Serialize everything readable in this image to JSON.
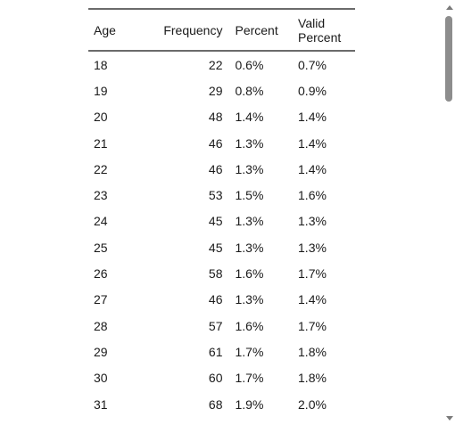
{
  "table": {
    "headers": {
      "age": "Age",
      "frequency": "Frequency",
      "percent": "Percent",
      "valid_percent_line1": "Valid",
      "valid_percent_line2": "Percent"
    },
    "rows": [
      {
        "age": "18",
        "frequency": "22",
        "percent": "0.6%",
        "valid_percent": "0.7%"
      },
      {
        "age": "19",
        "frequency": "29",
        "percent": "0.8%",
        "valid_percent": "0.9%"
      },
      {
        "age": "20",
        "frequency": "48",
        "percent": "1.4%",
        "valid_percent": "1.4%"
      },
      {
        "age": "21",
        "frequency": "46",
        "percent": "1.3%",
        "valid_percent": "1.4%"
      },
      {
        "age": "22",
        "frequency": "46",
        "percent": "1.3%",
        "valid_percent": "1.4%"
      },
      {
        "age": "23",
        "frequency": "53",
        "percent": "1.5%",
        "valid_percent": "1.6%"
      },
      {
        "age": "24",
        "frequency": "45",
        "percent": "1.3%",
        "valid_percent": "1.3%"
      },
      {
        "age": "25",
        "frequency": "45",
        "percent": "1.3%",
        "valid_percent": "1.3%"
      },
      {
        "age": "26",
        "frequency": "58",
        "percent": "1.6%",
        "valid_percent": "1.7%"
      },
      {
        "age": "27",
        "frequency": "46",
        "percent": "1.3%",
        "valid_percent": "1.4%"
      },
      {
        "age": "28",
        "frequency": "57",
        "percent": "1.6%",
        "valid_percent": "1.7%"
      },
      {
        "age": "29",
        "frequency": "61",
        "percent": "1.7%",
        "valid_percent": "1.8%"
      },
      {
        "age": "30",
        "frequency": "60",
        "percent": "1.7%",
        "valid_percent": "1.8%"
      },
      {
        "age": "31",
        "frequency": "68",
        "percent": "1.9%",
        "valid_percent": "2.0%"
      }
    ]
  },
  "scrollbar": {
    "up_icon": "chevron-up-icon",
    "down_icon": "chevron-down-icon"
  }
}
